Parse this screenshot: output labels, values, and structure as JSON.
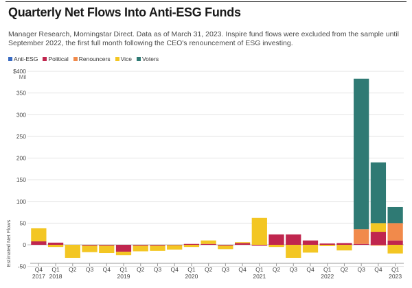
{
  "header": {
    "title": "Quarterly Net Flows Into Anti-ESG Funds",
    "subtitle": "Manager Research, Morningstar Direct. Data as of March 31, 2023. Inspire fund flows were excluded from the sample until September 2022, the first full month following the CEO's renouncement of ESG investing."
  },
  "colors": {
    "Anti-ESG": "#3a6bc2",
    "Political": "#c0264e",
    "Renouncers": "#f18a4b",
    "Vice": "#f3c623",
    "Voters": "#2f7a74"
  },
  "chart_data": {
    "type": "bar",
    "stacked": true,
    "title": "Quarterly Net Flows Into Anti-ESG Funds",
    "ylabel": "Estimated Net Flows",
    "yunit_top": "$400",
    "yunit_sub": "Mil",
    "ylim": [
      -40,
      400
    ],
    "yticks": [
      -50,
      0,
      50,
      100,
      150,
      200,
      250,
      300,
      350,
      400
    ],
    "ytick_labels": [
      "-50",
      "0",
      "50",
      "100",
      "150",
      "200",
      "250",
      "300",
      "350",
      "$400"
    ],
    "categories": [
      "Q4 2017",
      "Q1 2018",
      "Q2 2018",
      "Q3 2018",
      "Q4 2018",
      "Q1 2019",
      "Q2 2019",
      "Q3 2019",
      "Q4 2019",
      "Q1 2020",
      "Q2 2020",
      "Q3 2020",
      "Q4 2020",
      "Q1 2021",
      "Q2 2021",
      "Q3 2021",
      "Q4 2021",
      "Q1 2022",
      "Q2 2022",
      "Q3 2022",
      "Q4 2022",
      "Q1 2023"
    ],
    "quarter_labels": [
      "Q4",
      "Q1",
      "Q2",
      "Q3",
      "Q4",
      "Q1",
      "Q2",
      "Q3",
      "Q4",
      "Q1",
      "Q2",
      "Q3",
      "Q4",
      "Q1",
      "Q2",
      "Q3",
      "Q4",
      "Q1",
      "Q2",
      "Q3",
      "Q4",
      "Q1"
    ],
    "year_labels": [
      "2017",
      "2018",
      "",
      "",
      "",
      "2019",
      "",
      "",
      "",
      "2020",
      "",
      "",
      "",
      "2021",
      "",
      "",
      "",
      "2022",
      "",
      "",
      "",
      "2023"
    ],
    "series": [
      {
        "name": "Anti-ESG",
        "values": [
          0,
          0,
          0,
          0,
          0,
          0,
          0,
          0,
          0,
          0,
          0,
          0,
          0,
          0,
          0,
          0,
          0,
          0,
          0,
          0,
          0,
          0
        ]
      },
      {
        "name": "Political",
        "values": [
          8,
          5,
          0,
          -2,
          -2,
          -16,
          -2,
          -2,
          -1,
          2,
          2,
          -2,
          4,
          -2,
          24,
          24,
          10,
          3,
          4,
          2,
          30,
          10
        ]
      },
      {
        "name": "Renouncers",
        "values": [
          0,
          0,
          0,
          0,
          0,
          0,
          0,
          0,
          0,
          0,
          0,
          0,
          0,
          0,
          0,
          0,
          0,
          0,
          0,
          34,
          -2,
          40
        ]
      },
      {
        "name": "Vice",
        "values": [
          30,
          -5,
          -30,
          -15,
          -17,
          -8,
          -13,
          -12,
          -10,
          -5,
          8,
          -8,
          2,
          62,
          -5,
          -30,
          -18,
          -3,
          -13,
          0,
          20,
          -20
        ]
      },
      {
        "name": "Voters",
        "values": [
          0,
          0,
          0,
          0,
          0,
          0,
          0,
          0,
          0,
          0,
          0,
          0,
          0,
          0,
          0,
          0,
          0,
          0,
          0,
          347,
          140,
          37
        ]
      }
    ],
    "grid": true,
    "legend_position": "top-left"
  }
}
